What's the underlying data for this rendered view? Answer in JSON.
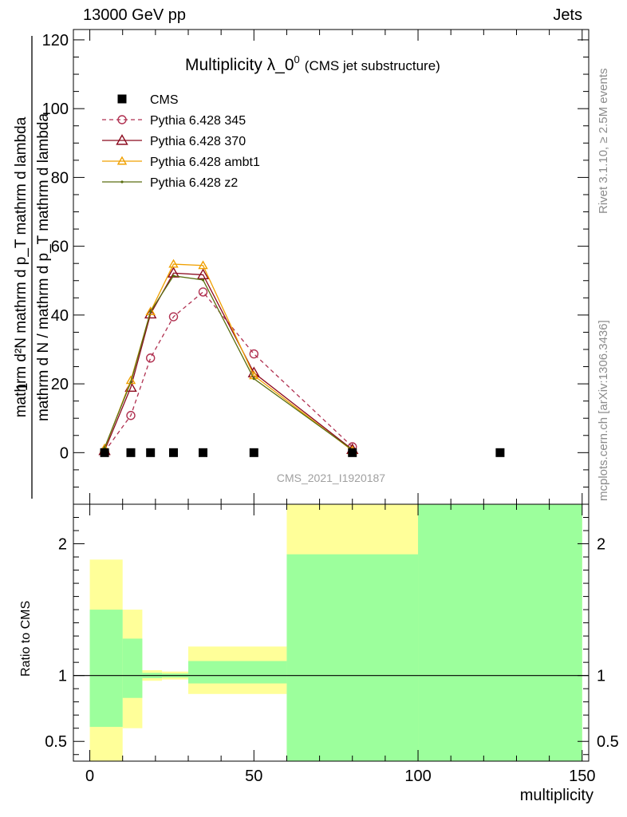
{
  "header": {
    "energy_label": "13000 GeV pp",
    "process_label": "Jets"
  },
  "side_labels": {
    "rivet": "Rivet 3.1.10, ≥ 2.5M events",
    "mcplots": "mcplots.cern.ch [arXiv:1306.3436]"
  },
  "chart_data": [
    {
      "type": "line",
      "title": "Multiplicity λ_0⁰",
      "title_main": "Multiplicity λ_0",
      "title_sup": "0",
      "subtitle": "(CMS jet substructure)",
      "analysis_tag": "CMS_2021_I1920187",
      "ylabel": "1 / mathrm d N / mathrm d p_T mathrm d^2N / mathrm d p_T mathrm d lambda",
      "ylabel_lines": [
        "mathrm d N / mathrm d p_T mathrm d lambda",
        "1",
        "mathrm d^2N / mathrm d p_T mathrm d lambda"
      ],
      "ylabel_numerator": "mathrm d²N",
      "ylabel_num_tail": "mathrm d p_T mathrm d lambda",
      "ylabel_den_one": "1",
      "ylabel_denominator": "mathrm d N / mathrm d p_T mathrm d lambda",
      "xlim": [
        -5,
        152
      ],
      "ylim": [
        -15,
        123
      ],
      "yticks": [
        0,
        20,
        40,
        60,
        80,
        100,
        120
      ],
      "grid": false,
      "legend_position": "top-left",
      "series": [
        {
          "name": "CMS",
          "color": "#000000",
          "marker": "square",
          "line": "none",
          "x": [
            4.5,
            12.5,
            18.5,
            25.5,
            34.5,
            50,
            80,
            125
          ],
          "y": [
            0,
            0,
            0,
            0,
            0,
            0,
            0,
            0
          ]
        },
        {
          "name": "Pythia 6.428 345",
          "color": "#b03050",
          "marker": "circle",
          "line": "dashed",
          "x": [
            4.5,
            12.5,
            18.5,
            25.5,
            34.5,
            50,
            80
          ],
          "y": [
            0.3,
            10.8,
            27.5,
            39.5,
            46.7,
            28.7,
            1.7
          ]
        },
        {
          "name": "Pythia 6.428 370",
          "color": "#8b0a1e",
          "marker": "triangle",
          "line": "solid",
          "x": [
            4.5,
            12.5,
            18.5,
            25.5,
            34.5,
            50,
            80
          ],
          "y": [
            0.6,
            19.0,
            40.3,
            52.2,
            51.7,
            23.2,
            0.9
          ]
        },
        {
          "name": "Pythia 6.428 ambt1",
          "color": "#f0a000",
          "marker": "triangle",
          "line": "solid",
          "x": [
            4.5,
            12.5,
            18.5,
            25.5,
            34.5,
            50,
            80
          ],
          "y": [
            1.2,
            21.0,
            41.0,
            54.8,
            54.4,
            22.4,
            0.6
          ]
        },
        {
          "name": "Pythia 6.428 z2",
          "color": "#5a6e10",
          "marker": "dot",
          "line": "solid",
          "x": [
            4.5,
            12.5,
            18.5,
            25.5,
            34.5,
            50,
            80
          ],
          "y": [
            1.4,
            20.5,
            41.0,
            51.4,
            50.2,
            21.5,
            0.8
          ]
        }
      ]
    },
    {
      "type": "area",
      "ylabel": "Ratio to CMS",
      "xlabel": "multiplicity",
      "xlim": [
        -5,
        152
      ],
      "ylim": [
        0.35,
        2.3
      ],
      "yticks": [
        0.5,
        1,
        2
      ],
      "ytick_labels": [
        "0.5",
        "1",
        "2"
      ],
      "xticks": [
        0,
        50,
        100,
        150
      ],
      "xtick_labels": [
        "0",
        "50",
        "100",
        "150"
      ],
      "reference_line": 1,
      "bands": [
        {
          "name": "total uncertainty",
          "color": "#ffff99",
          "bins": [
            {
              "x0": 0,
              "x1": 10,
              "lo": 0.3,
              "hi": 1.88
            },
            {
              "x0": 10,
              "x1": 16,
              "lo": 0.6,
              "hi": 1.5
            },
            {
              "x0": 16,
              "x1": 22,
              "lo": 0.96,
              "hi": 1.04
            },
            {
              "x0": 22,
              "x1": 30,
              "lo": 0.97,
              "hi": 1.03
            },
            {
              "x0": 30,
              "x1": 60,
              "lo": 0.86,
              "hi": 1.22
            },
            {
              "x0": 60,
              "x1": 100,
              "lo": 0.3,
              "hi": 2.3
            },
            {
              "x0": 100,
              "x1": 150,
              "lo": 0.3,
              "hi": 2.3
            }
          ]
        },
        {
          "name": "statistical uncertainty",
          "color": "#9cff9c",
          "bins": [
            {
              "x0": 0,
              "x1": 10,
              "lo": 0.61,
              "hi": 1.5
            },
            {
              "x0": 10,
              "x1": 16,
              "lo": 0.83,
              "hi": 1.28
            },
            {
              "x0": 16,
              "x1": 22,
              "lo": 0.98,
              "hi": 1.02
            },
            {
              "x0": 22,
              "x1": 30,
              "lo": 0.985,
              "hi": 1.015
            },
            {
              "x0": 30,
              "x1": 60,
              "lo": 0.94,
              "hi": 1.11
            },
            {
              "x0": 60,
              "x1": 100,
              "lo": 0.3,
              "hi": 1.92
            },
            {
              "x0": 100,
              "x1": 150,
              "lo": 0.3,
              "hi": 2.3
            }
          ]
        }
      ]
    }
  ]
}
